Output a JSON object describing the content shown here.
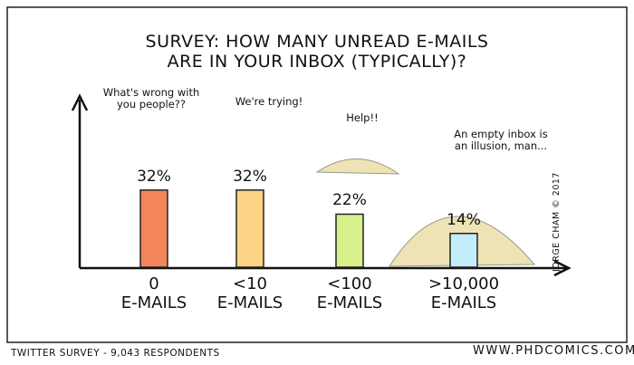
{
  "chart_data": {
    "type": "bar",
    "title": "SURVEY: HOW MANY UNREAD E-MAILS\nARE IN YOUR INBOX (TYPICALLY)?",
    "categories": [
      "0\nE-MAILS",
      "<10\nE-MAILS",
      "<100\nE-MAILS",
      ">10,000\nE-MAILS"
    ],
    "values": [
      32,
      32,
      22,
      14
    ],
    "value_labels": [
      "32%",
      "32%",
      "22%",
      "14%"
    ],
    "colors": [
      "#f4865c",
      "#fdd385",
      "#d8f08c",
      "#c2eefb"
    ],
    "annotations": [
      "What's wrong with\nyou people??",
      "We're trying!",
      "Help!!",
      "An empty inbox is\nan illusion, man..."
    ],
    "source": "TWITTER SURVEY - 9,043 RESPONDENTS",
    "website": "WWW.PHDCOMICS.COM",
    "credit": "JORGE CHAM © 2017"
  }
}
